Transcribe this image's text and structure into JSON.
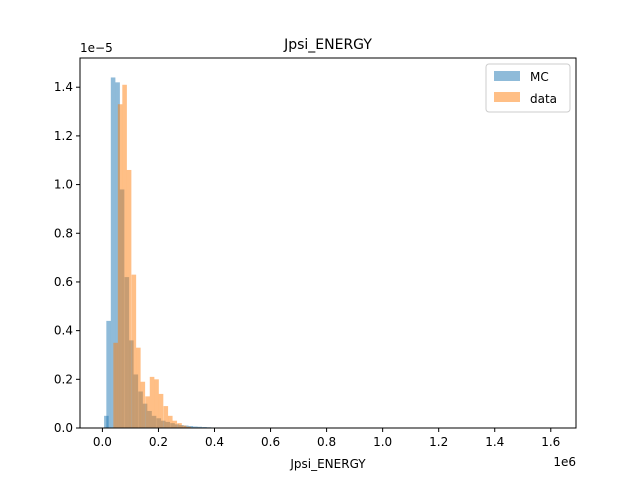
{
  "chart_data": {
    "type": "bar",
    "title": "Jpsi_ENERGY",
    "xlabel": "Jpsi_ENERGY",
    "ylabel": "",
    "x_offset_text": "1e6",
    "y_offset_text": "1e−5",
    "xlim": [
      -0.08,
      1.69
    ],
    "ylim": [
      0,
      1.52
    ],
    "xticks": [
      0.0,
      0.2,
      0.4,
      0.6,
      0.8,
      1.0,
      1.2,
      1.4,
      1.6
    ],
    "xtick_labels": [
      "0.0",
      "0.2",
      "0.4",
      "0.6",
      "0.8",
      "1.0",
      "1.2",
      "1.4",
      "1.6"
    ],
    "yticks": [
      0.0,
      0.2,
      0.4,
      0.6,
      0.8,
      1.0,
      1.2,
      1.4
    ],
    "ytick_labels": [
      "0.0",
      "0.2",
      "0.4",
      "0.6",
      "0.8",
      "1.0",
      "1.2",
      "1.4"
    ],
    "legend_position": "top-right",
    "grid": false,
    "bin_width": 0.0163,
    "series": [
      {
        "name": "MC",
        "color": "#1f77b4",
        "opacity": 0.5,
        "bins": [
          [
            0.006,
            0.05
          ],
          [
            0.014,
            0.44
          ],
          [
            0.03,
            1.44
          ],
          [
            0.046,
            1.42
          ],
          [
            0.062,
            0.98
          ],
          [
            0.079,
            0.62
          ],
          [
            0.095,
            0.36
          ],
          [
            0.111,
            0.22
          ],
          [
            0.128,
            0.15
          ],
          [
            0.144,
            0.1
          ],
          [
            0.16,
            0.07
          ],
          [
            0.176,
            0.05
          ],
          [
            0.193,
            0.04
          ],
          [
            0.209,
            0.03
          ],
          [
            0.225,
            0.025
          ],
          [
            0.242,
            0.02
          ],
          [
            0.258,
            0.015
          ],
          [
            0.274,
            0.012
          ],
          [
            0.291,
            0.01
          ],
          [
            0.307,
            0.008
          ],
          [
            0.323,
            0.006
          ],
          [
            0.339,
            0.005
          ],
          [
            0.356,
            0.004
          ],
          [
            0.372,
            0.003
          ],
          [
            0.388,
            0.002
          ],
          [
            0.405,
            0.002
          ],
          [
            0.421,
            0.001
          ],
          [
            0.437,
            0.001
          ],
          [
            0.47,
            0.001
          ]
        ]
      },
      {
        "name": "data",
        "color": "#ff7f0e",
        "opacity": 0.5,
        "bins": [
          [
            0.023,
            0.0
          ],
          [
            0.039,
            0.35
          ],
          [
            0.055,
            1.33
          ],
          [
            0.071,
            1.41
          ],
          [
            0.087,
            1.06
          ],
          [
            0.104,
            0.63
          ],
          [
            0.12,
            0.33
          ],
          [
            0.136,
            0.19
          ],
          [
            0.153,
            0.13
          ],
          [
            0.169,
            0.21
          ],
          [
            0.185,
            0.2
          ],
          [
            0.201,
            0.14
          ],
          [
            0.218,
            0.09
          ],
          [
            0.234,
            0.05
          ],
          [
            0.25,
            0.03
          ],
          [
            0.267,
            0.02
          ],
          [
            0.283,
            0.01
          ],
          [
            0.299,
            0.005
          ]
        ]
      }
    ]
  }
}
